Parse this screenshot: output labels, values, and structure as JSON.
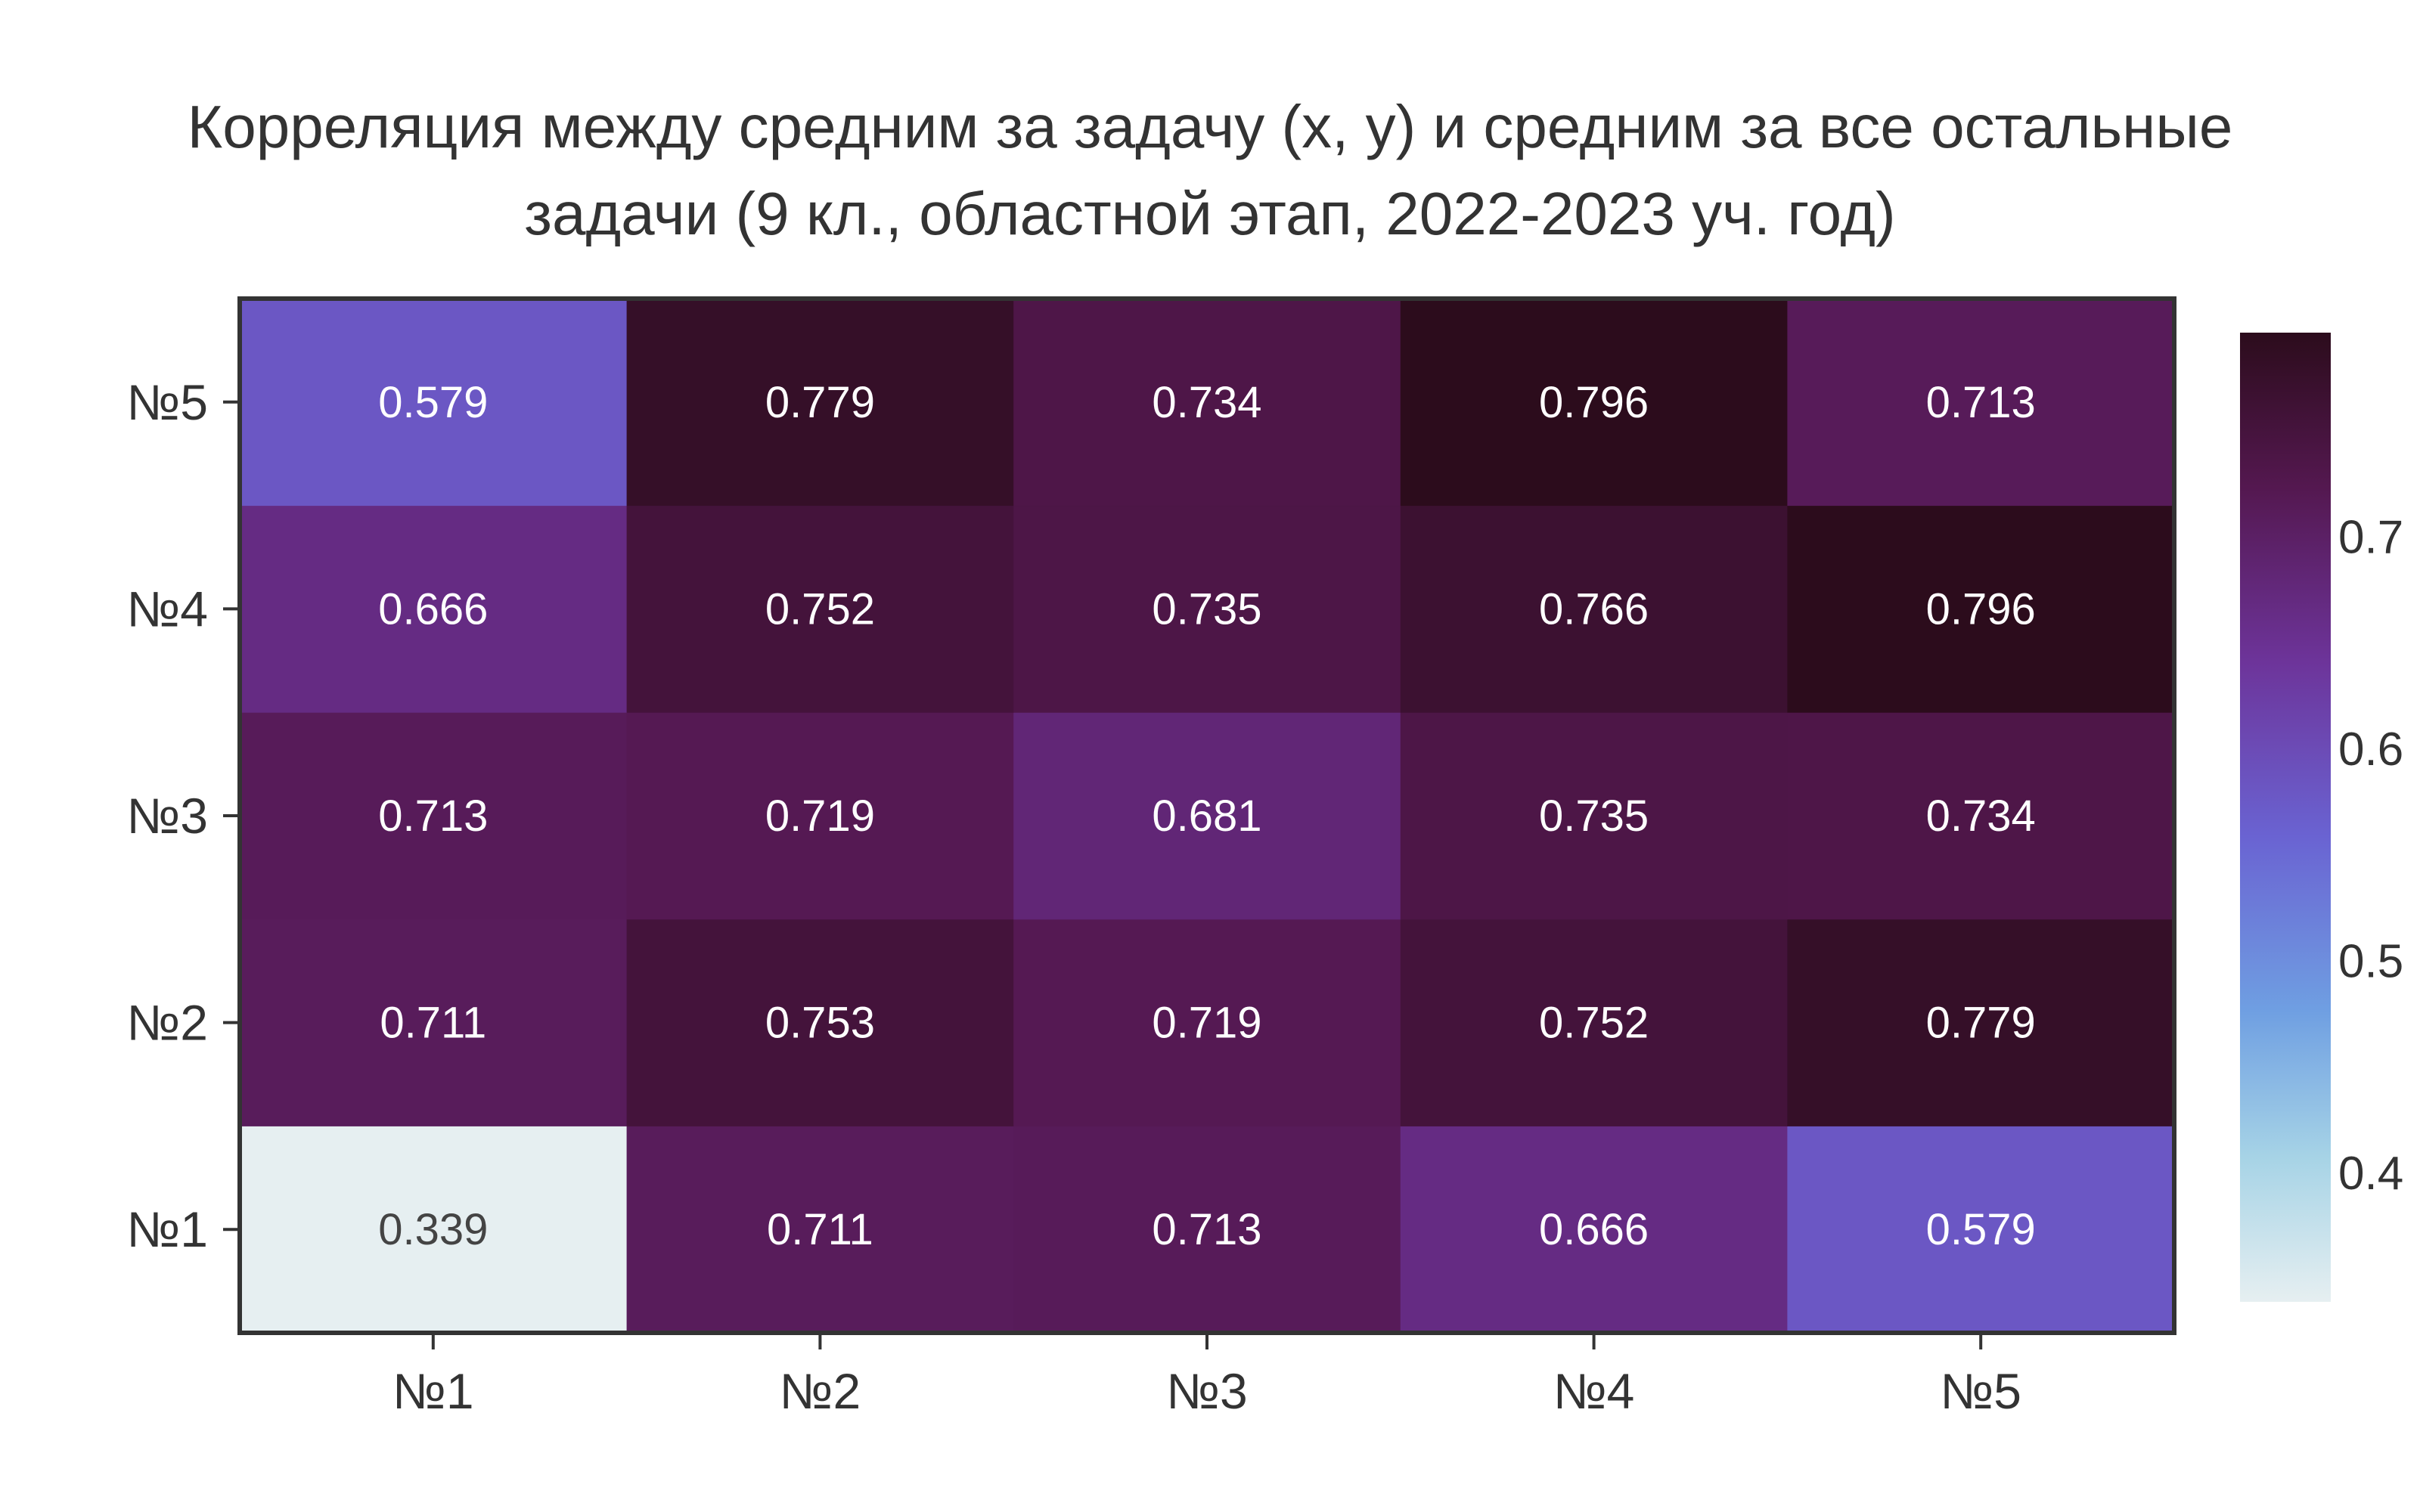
{
  "chart_data": {
    "type": "heatmap",
    "title": "Корреляция между средним за задачу (x, y) и средним за все остальные задачи (9 кл., областной этап, 2022-2023 уч. год)",
    "title_lines": [
      "Корреляция между средним за задачу (x, y) и средним за все остальные",
      "задачи (9 кл., областной этап, 2022-2023 уч. год)"
    ],
    "x_categories": [
      "№1",
      "№2",
      "№3",
      "№4",
      "№5"
    ],
    "y_categories": [
      "№1",
      "№2",
      "№3",
      "№4",
      "№5"
    ],
    "values": [
      [
        0.339,
        0.711,
        0.713,
        0.666,
        0.579
      ],
      [
        0.711,
        0.753,
        0.719,
        0.752,
        0.779
      ],
      [
        0.713,
        0.719,
        0.681,
        0.735,
        0.734
      ],
      [
        0.666,
        0.752,
        0.735,
        0.766,
        0.796
      ],
      [
        0.579,
        0.779,
        0.734,
        0.796,
        0.713
      ]
    ],
    "value_labels": [
      [
        "0.339",
        "0.711",
        "0.713",
        "0.666",
        "0.579"
      ],
      [
        "0.711",
        "0.753",
        "0.719",
        "0.752",
        "0.779"
      ],
      [
        "0.713",
        "0.719",
        "0.681",
        "0.735",
        "0.734"
      ],
      [
        "0.666",
        "0.752",
        "0.735",
        "0.766",
        "0.796"
      ],
      [
        "0.579",
        "0.779",
        "0.734",
        "0.796",
        "0.713"
      ]
    ],
    "colorbar": {
      "range": [
        0.339,
        0.796
      ],
      "ticks": [
        0.4,
        0.5,
        0.6,
        0.7
      ],
      "tick_labels": [
        "0.4",
        "0.5",
        "0.6",
        "0.7"
      ]
    },
    "colorscale": [
      [
        0.0,
        "#e6eff1"
      ],
      [
        0.15,
        "#a6d3e6"
      ],
      [
        0.3,
        "#6f9fe2"
      ],
      [
        0.48,
        "#6a63d2"
      ],
      [
        0.66,
        "#6d349a"
      ],
      [
        0.84,
        "#541850"
      ],
      [
        1.0,
        "#2c0c1c"
      ]
    ],
    "light_text_color": "#ffffff",
    "dark_text_color": "#444444"
  }
}
